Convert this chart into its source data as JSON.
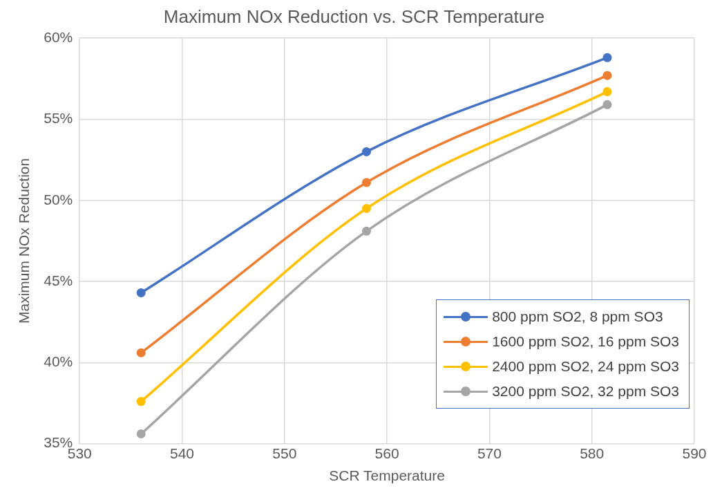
{
  "chart_data": {
    "type": "line",
    "title": "Maximum NOx Reduction vs. SCR Temperature",
    "xlabel": "SCR Temperature",
    "ylabel": "Maximum NOx Reduction",
    "x": [
      536,
      558,
      581.5
    ],
    "series": [
      {
        "name": "800 ppm SO2, 8 ppm SO3",
        "color": "#4472c4",
        "values": [
          44.3,
          53.0,
          58.8
        ]
      },
      {
        "name": "1600 ppm SO2, 16 ppm SO3",
        "color": "#ed7d31",
        "values": [
          40.6,
          51.1,
          57.7
        ]
      },
      {
        "name": "2400 ppm SO2, 24 ppm SO3",
        "color": "#ffc000",
        "values": [
          37.6,
          49.5,
          56.7
        ]
      },
      {
        "name": "3200 ppm SO2, 32 ppm SO3",
        "color": "#a5a5a5",
        "values": [
          35.6,
          48.1,
          55.9
        ]
      }
    ],
    "xlim": [
      530,
      590
    ],
    "xticks": [
      530,
      540,
      550,
      560,
      570,
      580,
      590
    ],
    "ylim": [
      35,
      60
    ],
    "yticks": [
      {
        "value": 35,
        "label": "35%"
      },
      {
        "value": 40,
        "label": "40%"
      },
      {
        "value": 45,
        "label": "45%"
      },
      {
        "value": 50,
        "label": "50%"
      },
      {
        "value": 55,
        "label": "55%"
      },
      {
        "value": 60,
        "label": "60%"
      }
    ],
    "grid": true,
    "legend": "bottom right",
    "marker": "circle",
    "line_style": "solid"
  }
}
